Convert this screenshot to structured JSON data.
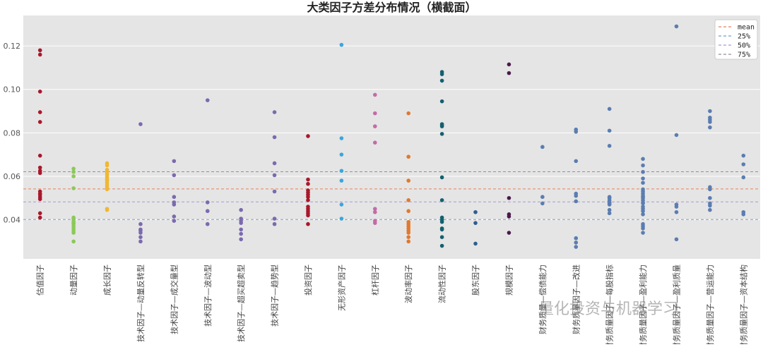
{
  "watermark": "量化投资与机器学习",
  "chart_data": {
    "type": "scatter",
    "title": "大类因子方差分布情况（横截面）",
    "xlabel": "",
    "ylabel": "",
    "ylim": [
      0.022,
      0.134
    ],
    "yticks": [
      "0.04",
      "0.06",
      "0.08",
      "0.10",
      "0.12"
    ],
    "ytick_values": [
      0.04,
      0.06,
      0.08,
      0.1,
      0.12
    ],
    "grid": true,
    "legend_position": "top-right",
    "reference_lines": [
      {
        "name": "mean",
        "value": 0.0542,
        "color": "#e8825a"
      },
      {
        "name": "25%",
        "value": 0.0401,
        "color": "#6f9fd0"
      },
      {
        "name": "50%",
        "value": 0.0482,
        "color": "#a89ad4"
      },
      {
        "name": "75%",
        "value": 0.0621,
        "color": "#9a8a9a"
      }
    ],
    "categories": [
      "估值因子",
      "动量因子",
      "成长因子",
      "技术因子—动量反转型",
      "技术因子—成交量型",
      "技术因子—波动型",
      "技术因子—超买超卖型",
      "技术因子—趋势型",
      "投资因子",
      "无形资产因子",
      "杠杆因子",
      "波动率因子",
      "流动性因子",
      "股东因子",
      "规模因子",
      "财务质量—偿债能力",
      "财务质量因子—改进",
      "财务质量因子—每股指标",
      "财务质量因子—盈利能力",
      "财务质量因子—盈利质量",
      "财务质量因子—营运能力",
      "财务质量因子—资本结构"
    ],
    "series": [
      {
        "color": "#a8182c",
        "values": [
          0.118,
          0.116,
          0.099,
          0.0895,
          0.085,
          0.0695,
          0.064,
          0.0625,
          0.0615,
          0.053,
          0.052,
          0.0515,
          0.0505,
          0.0495,
          0.043,
          0.041
        ]
      },
      {
        "color": "#8cc85a",
        "values": [
          0.0635,
          0.062,
          0.06,
          0.0545,
          0.041,
          0.0405,
          0.04,
          0.039,
          0.0385,
          0.038,
          0.037,
          0.036,
          0.035,
          0.034,
          0.03
        ]
      },
      {
        "color": "#f0b732",
        "values": [
          0.066,
          0.065,
          0.063,
          0.062,
          0.061,
          0.06,
          0.059,
          0.0585,
          0.058,
          0.057,
          0.056,
          0.055,
          0.054,
          0.045,
          0.0445
        ]
      },
      {
        "color": "#7b6aae",
        "values": [
          0.084,
          0.038,
          0.0355,
          0.035,
          0.034,
          0.032,
          0.03
        ]
      },
      {
        "color": "#7b6aae",
        "values": [
          0.067,
          0.0605,
          0.0505,
          0.048,
          0.047,
          0.0415,
          0.0395
        ]
      },
      {
        "color": "#7b6aae",
        "values": [
          0.095,
          0.048,
          0.044,
          0.038
        ]
      },
      {
        "color": "#7b6aae",
        "values": [
          0.0445,
          0.0405,
          0.0395,
          0.0385,
          0.0355,
          0.0335,
          0.031
        ]
      },
      {
        "color": "#7b6aae",
        "values": [
          0.0895,
          0.078,
          0.066,
          0.0605,
          0.053,
          0.0405,
          0.038
        ]
      },
      {
        "color": "#a8182c",
        "values": [
          0.0785,
          0.0585,
          0.0565,
          0.0535,
          0.0525,
          0.0515,
          0.0505,
          0.049,
          0.046,
          0.045,
          0.044,
          0.043,
          0.042,
          0.038
        ]
      },
      {
        "color": "#3aa6dc",
        "values": [
          0.1205,
          0.0775,
          0.07,
          0.0625,
          0.058,
          0.047,
          0.0405
        ]
      },
      {
        "color": "#c56aa8",
        "values": [
          0.0975,
          0.089,
          0.083,
          0.0755,
          0.045,
          0.0435,
          0.0395,
          0.0385
        ]
      },
      {
        "color": "#e0792e",
        "values": [
          0.089,
          0.069,
          0.058,
          0.049,
          0.044,
          0.039,
          0.038,
          0.037,
          0.036,
          0.035,
          0.034,
          0.032,
          0.03
        ]
      },
      {
        "color": "#14606f",
        "values": [
          0.108,
          0.107,
          0.104,
          0.0945,
          0.084,
          0.0835,
          0.083,
          0.0795,
          0.0595,
          0.049,
          0.041,
          0.04,
          0.039,
          0.036,
          0.0355,
          0.032,
          0.028
        ]
      },
      {
        "color": "#2e5e8e",
        "values": [
          0.0435,
          0.0385,
          0.029
        ]
      },
      {
        "color": "#4a1a4a",
        "values": [
          0.1115,
          0.1075,
          0.05,
          0.0425,
          0.0415,
          0.034
        ]
      },
      {
        "color": "#5b7db0",
        "values": [
          0.0735,
          0.0505,
          0.0475
        ]
      },
      {
        "color": "#5b7db0",
        "values": [
          0.0815,
          0.0805,
          0.067,
          0.052,
          0.051,
          0.0485,
          0.0315,
          0.0295,
          0.0275
        ]
      },
      {
        "color": "#5b7db0",
        "values": [
          0.091,
          0.081,
          0.074,
          0.0505,
          0.05,
          0.049,
          0.048,
          0.0475,
          0.047,
          0.0445,
          0.043
        ]
      },
      {
        "color": "#5b7db0",
        "values": [
          0.068,
          0.065,
          0.062,
          0.059,
          0.057,
          0.054,
          0.053,
          0.052,
          0.051,
          0.0505,
          0.05,
          0.049,
          0.048,
          0.0475,
          0.046,
          0.045,
          0.044,
          0.0425,
          0.038,
          0.037,
          0.036,
          0.034
        ]
      },
      {
        "color": "#5b7db0",
        "values": [
          0.129,
          0.079,
          0.047,
          0.046,
          0.0435,
          0.031
        ]
      },
      {
        "color": "#5b7db0",
        "values": [
          0.09,
          0.087,
          0.086,
          0.085,
          0.0825,
          0.055,
          0.054,
          0.05,
          0.0475,
          0.0465,
          0.0445
        ]
      },
      {
        "color": "#5b7db0",
        "values": [
          0.0695,
          0.0655,
          0.0595,
          0.0435,
          0.0425
        ]
      }
    ]
  }
}
